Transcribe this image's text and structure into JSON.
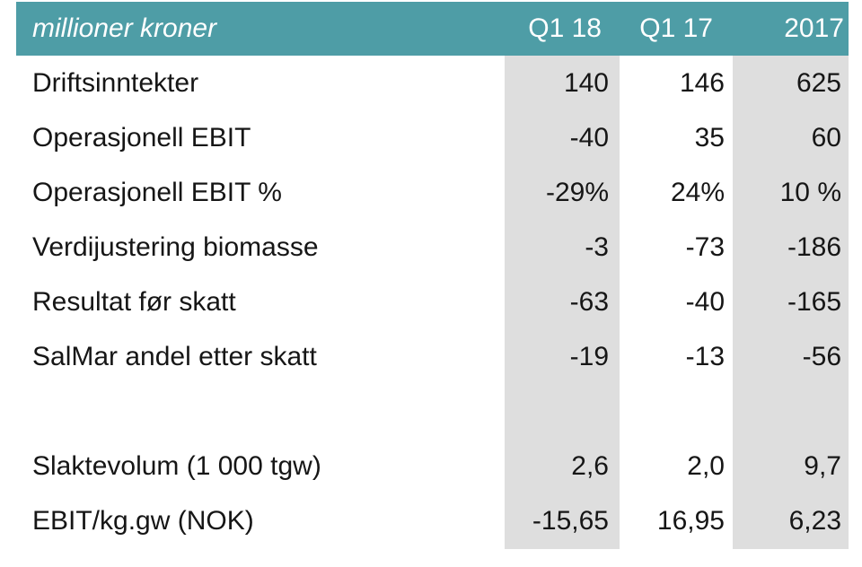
{
  "table": {
    "header": {
      "label": "millioner kroner",
      "columns": [
        "Q1 18",
        "Q1 17",
        "2017"
      ]
    },
    "rows": [
      {
        "label": "Driftsinntekter",
        "values": [
          "140",
          "146",
          "625"
        ]
      },
      {
        "label": "Operasjonell EBIT",
        "values": [
          "-40",
          "35",
          "60"
        ]
      },
      {
        "label": "Operasjonell EBIT %",
        "values": [
          "-29%",
          "24%",
          "10 %"
        ]
      },
      {
        "label": "Verdijustering biomasse",
        "values": [
          "-3",
          "-73",
          "-186"
        ]
      },
      {
        "label": "Resultat før skatt",
        "values": [
          "-63",
          "-40",
          "-165"
        ]
      },
      {
        "label": "SalMar andel etter skatt",
        "values": [
          "-19",
          "-13",
          "-56"
        ]
      },
      {
        "label": "",
        "values": [
          "",
          "",
          ""
        ]
      },
      {
        "label": "Slaktevolum (1 000 tgw)",
        "values": [
          "2,6",
          "2,0",
          "9,7"
        ]
      },
      {
        "label": "EBIT/kg.gw (NOK)",
        "values": [
          "-15,65",
          "16,95",
          "6,23"
        ]
      }
    ],
    "colors": {
      "header_bg": "#4E9DA6",
      "stripe_bg": "#DEDEDE",
      "text": "#161616",
      "header_text": "#FFFFFF",
      "page_bg": "#FFFFFF"
    }
  },
  "chart_data": {
    "type": "table",
    "title": "millioner kroner",
    "columns": [
      "Q1 18",
      "Q1 17",
      "2017"
    ],
    "series": [
      {
        "name": "Driftsinntekter",
        "values": [
          140,
          146,
          625
        ]
      },
      {
        "name": "Operasjonell EBIT",
        "values": [
          -40,
          35,
          60
        ]
      },
      {
        "name": "Operasjonell EBIT %",
        "values": [
          "-29%",
          "24%",
          "10 %"
        ]
      },
      {
        "name": "Verdijustering biomasse",
        "values": [
          -3,
          -73,
          -186
        ]
      },
      {
        "name": "Resultat før skatt",
        "values": [
          -63,
          -40,
          -165
        ]
      },
      {
        "name": "SalMar andel etter skatt",
        "values": [
          -19,
          -13,
          -56
        ]
      },
      {
        "name": "Slaktevolum (1 000 tgw)",
        "values": [
          2.6,
          2.0,
          9.7
        ]
      },
      {
        "name": "EBIT/kg.gw (NOK)",
        "values": [
          -15.65,
          16.95,
          6.23
        ]
      }
    ]
  }
}
